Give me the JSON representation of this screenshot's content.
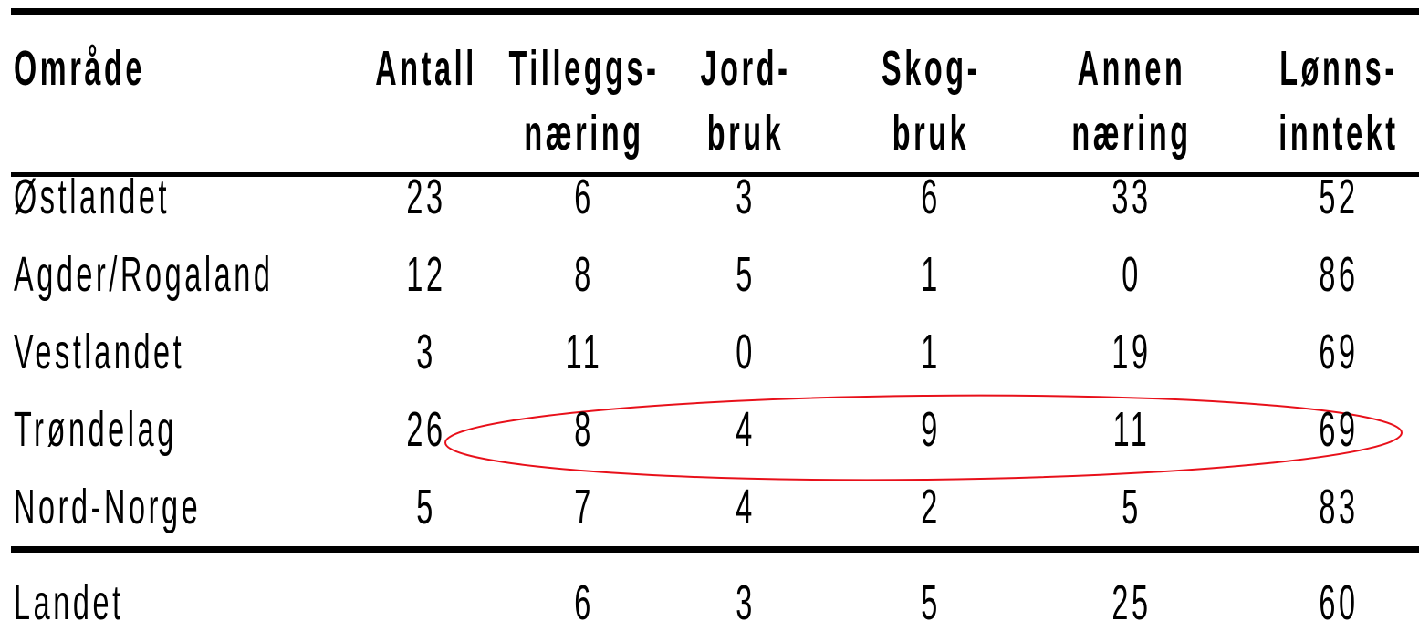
{
  "table": {
    "columns": [
      [
        "Område"
      ],
      [
        "Antall"
      ],
      [
        "Tilleggs-",
        "næring"
      ],
      [
        "Jord-",
        "bruk"
      ],
      [
        "Skog-",
        "bruk"
      ],
      [
        "Annen",
        "næring"
      ],
      [
        "Lønns-",
        "inntekt"
      ]
    ],
    "rows": [
      {
        "label": "Østlandet",
        "values": [
          23,
          6,
          3,
          6,
          33,
          52
        ]
      },
      {
        "label": "Agder/Rogaland",
        "values": [
          12,
          8,
          5,
          1,
          0,
          86
        ]
      },
      {
        "label": "Vestlandet",
        "values": [
          3,
          11,
          0,
          1,
          19,
          69
        ]
      },
      {
        "label": "Trøndelag",
        "values": [
          26,
          8,
          4,
          9,
          11,
          69
        ]
      },
      {
        "label": "Nord-Norge",
        "values": [
          5,
          7,
          4,
          2,
          5,
          83
        ]
      }
    ],
    "total": {
      "label": "Landet",
      "values": [
        null,
        6,
        3,
        5,
        25,
        60
      ]
    }
  }
}
